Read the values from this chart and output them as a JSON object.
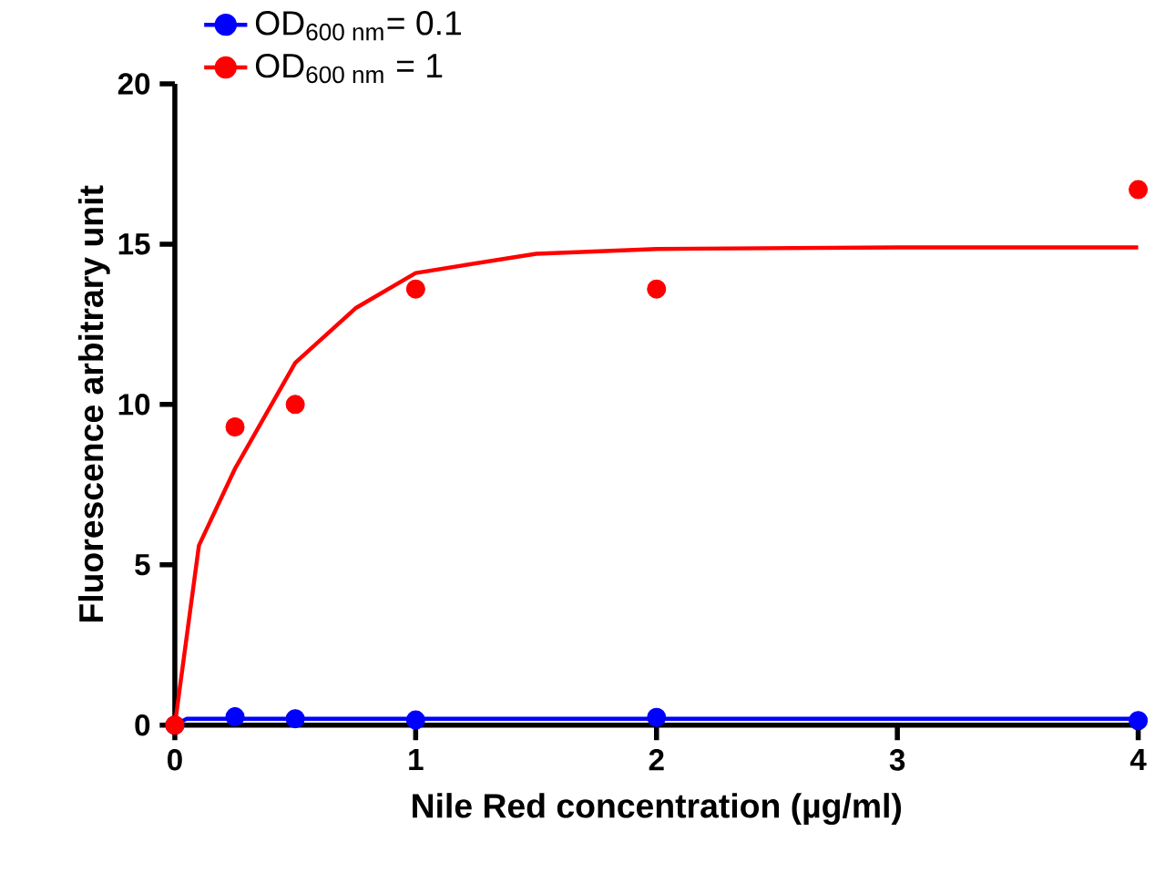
{
  "chart_data": {
    "type": "scatter",
    "xlabel": "Nile Red concentration (µg/ml)",
    "ylabel": "Fluorescence arbitrary unit",
    "xlim": [
      0,
      4
    ],
    "ylim": [
      0,
      20
    ],
    "xticks": [
      0,
      1,
      2,
      3,
      4
    ],
    "yticks": [
      0,
      5,
      10,
      15,
      20
    ],
    "grid": false,
    "legend": "top left",
    "series": [
      {
        "type": "line",
        "marker": "none",
        "color": "#0000ff",
        "x": [
          0,
          0.05,
          4
        ],
        "values": [
          0,
          0.2,
          0.2
        ]
      },
      {
        "type": "line",
        "marker": "none",
        "color": "#ff0000",
        "x": [
          0,
          0.1,
          0.25,
          0.5,
          0.75,
          1,
          1.5,
          2,
          3,
          4
        ],
        "values": [
          0,
          5.6,
          8.0,
          11.3,
          13.0,
          14.1,
          14.7,
          14.85,
          14.9,
          14.9
        ]
      },
      {
        "name": "OD$_{600 nm}$= 0.1",
        "marker": "circle",
        "color": "#0000ff",
        "x": [
          0,
          0.25,
          0.5,
          1,
          2,
          4
        ],
        "values": [
          0,
          0.26,
          0.2,
          0.16,
          0.24,
          0.14
        ]
      },
      {
        "name": "OD$_{600 nm}$ = 1",
        "marker": "circle",
        "color": "#ff0000",
        "x": [
          0,
          0.25,
          0.5,
          1,
          2,
          4
        ],
        "values": [
          0,
          9.3,
          10.0,
          13.6,
          13.6,
          16.7
        ]
      }
    ]
  }
}
